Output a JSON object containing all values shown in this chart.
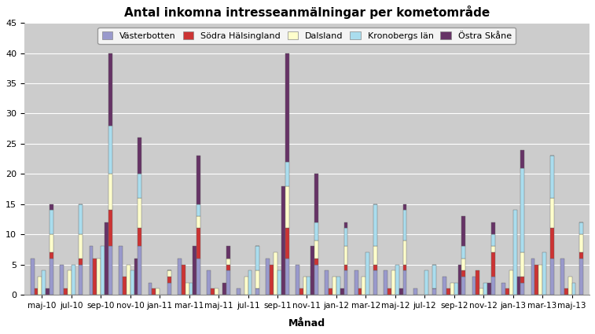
{
  "title": "Antal inkomna intresseanmälningar per kometområde",
  "xlabel": "Månad",
  "ylabel": "",
  "ylim": [
    0,
    45
  ],
  "yticks": [
    0,
    5,
    10,
    15,
    20,
    25,
    30,
    35,
    40,
    45
  ],
  "categories": [
    "maj-10",
    "jul-10",
    "sep-10",
    "nov-10",
    "jan-11",
    "mar-11",
    "maj-11",
    "jul-11",
    "sep-11",
    "nov-11",
    "jan-12",
    "mar-12",
    "maj-12",
    "jul-12",
    "sep-12",
    "nov-12",
    "jan-13",
    "mar-13",
    "maj-13"
  ],
  "regions": [
    "Västerbotten",
    "Södra Hälsingland",
    "Dalsland",
    "Kronobergs län",
    "Östra Skåne"
  ],
  "colors": [
    "#9999cc",
    "#cc3333",
    "#ffffcc",
    "#aaddee",
    "#663366"
  ],
  "data": {
    "Västerbotten": [
      6,
      5,
      8,
      8,
      2,
      6,
      4,
      1,
      6,
      5,
      4,
      4,
      4,
      1,
      3,
      3,
      2,
      6,
      6
    ],
    "Södra Hälsingland": [
      1,
      1,
      6,
      3,
      1,
      5,
      1,
      0,
      5,
      1,
      1,
      1,
      1,
      0,
      1,
      4,
      1,
      5,
      1
    ],
    "Dalsland": [
      3,
      4,
      6,
      5,
      1,
      2,
      1,
      3,
      7,
      3,
      3,
      3,
      4,
      0,
      2,
      1,
      4,
      5,
      3
    ],
    "Kronobergs län": [
      4,
      5,
      8,
      4,
      0,
      2,
      0,
      4,
      4,
      3,
      3,
      7,
      5,
      4,
      2,
      2,
      14,
      7,
      2
    ],
    "Östra Skåne": [
      1,
      0,
      12,
      6,
      0,
      8,
      2,
      0,
      18,
      8,
      1,
      0,
      1,
      0,
      5,
      2,
      3,
      0,
      0
    ]
  },
  "background_color": "#cccccc",
  "bar_width": 0.13,
  "group_width": 0.8
}
